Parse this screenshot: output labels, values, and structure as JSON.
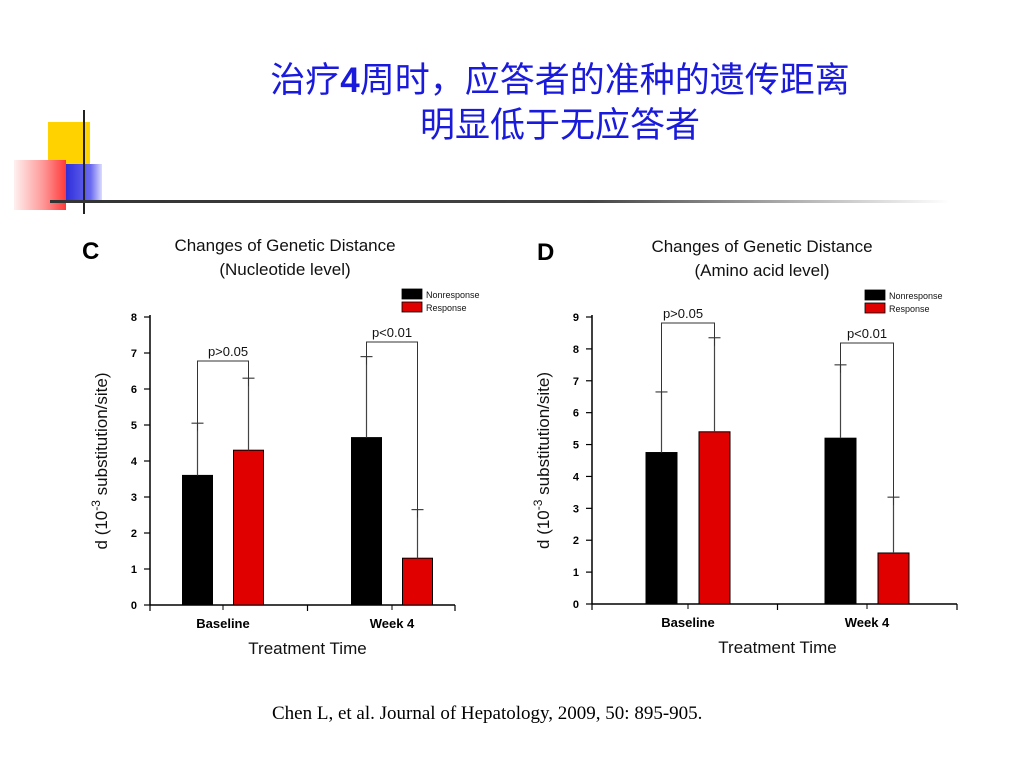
{
  "slide": {
    "title_line1_pre": "治疗",
    "title_line1_num": "4",
    "title_line1_post": "周时，应答者的准种的遗传距离",
    "title_line2": "明显低于无应答者",
    "citation": "Chen L, et al.  Journal of Hepatology, 2009, 50: 895-905."
  },
  "colors": {
    "title": "#1a1adc",
    "nonresponse": "#000000",
    "response": "#e00000"
  },
  "chart_data": [
    {
      "type": "bar",
      "panel": "C",
      "title": "Changes of Genetic Distance",
      "subtitle": "(Nucleotide level)",
      "xlabel": "Treatment Time",
      "ylabel_pre": "d (10",
      "ylabel_sup": "-3",
      "ylabel_post": " substitution/site)",
      "ylim": [
        0,
        8
      ],
      "yticks": [
        "0",
        "1",
        "2",
        "3",
        "4",
        "5",
        "6",
        "7",
        "8"
      ],
      "categories": [
        "Baseline",
        "Week 4"
      ],
      "series": [
        {
          "name": "Nonresponse",
          "color": "#000000",
          "values": [
            3.6,
            4.65
          ],
          "errors": [
            1.45,
            2.25
          ]
        },
        {
          "name": "Response",
          "color": "#e00000",
          "values": [
            4.3,
            1.3
          ],
          "errors": [
            2.0,
            1.35
          ]
        }
      ],
      "annotations": [
        "p>0.05",
        "p<0.01"
      ],
      "legend_position": "top-right"
    },
    {
      "type": "bar",
      "panel": "D",
      "title": "Changes of Genetic Distance",
      "subtitle": "(Amino acid level)",
      "xlabel": "Treatment Time",
      "ylabel_pre": "d (10",
      "ylabel_sup": "-3",
      "ylabel_post": " substitution/site)",
      "ylim": [
        0,
        9
      ],
      "yticks": [
        "0",
        "1",
        "2",
        "3",
        "4",
        "5",
        "6",
        "7",
        "8",
        "9"
      ],
      "categories": [
        "Baseline",
        "Week 4"
      ],
      "series": [
        {
          "name": "Nonresponse",
          "color": "#000000",
          "values": [
            4.75,
            5.2
          ],
          "errors": [
            1.9,
            2.3
          ]
        },
        {
          "name": "Response",
          "color": "#e00000",
          "values": [
            5.4,
            1.6
          ],
          "errors": [
            2.95,
            1.75
          ]
        }
      ],
      "annotations": [
        "p>0.05",
        "p<0.01"
      ],
      "legend_position": "top-right"
    }
  ]
}
